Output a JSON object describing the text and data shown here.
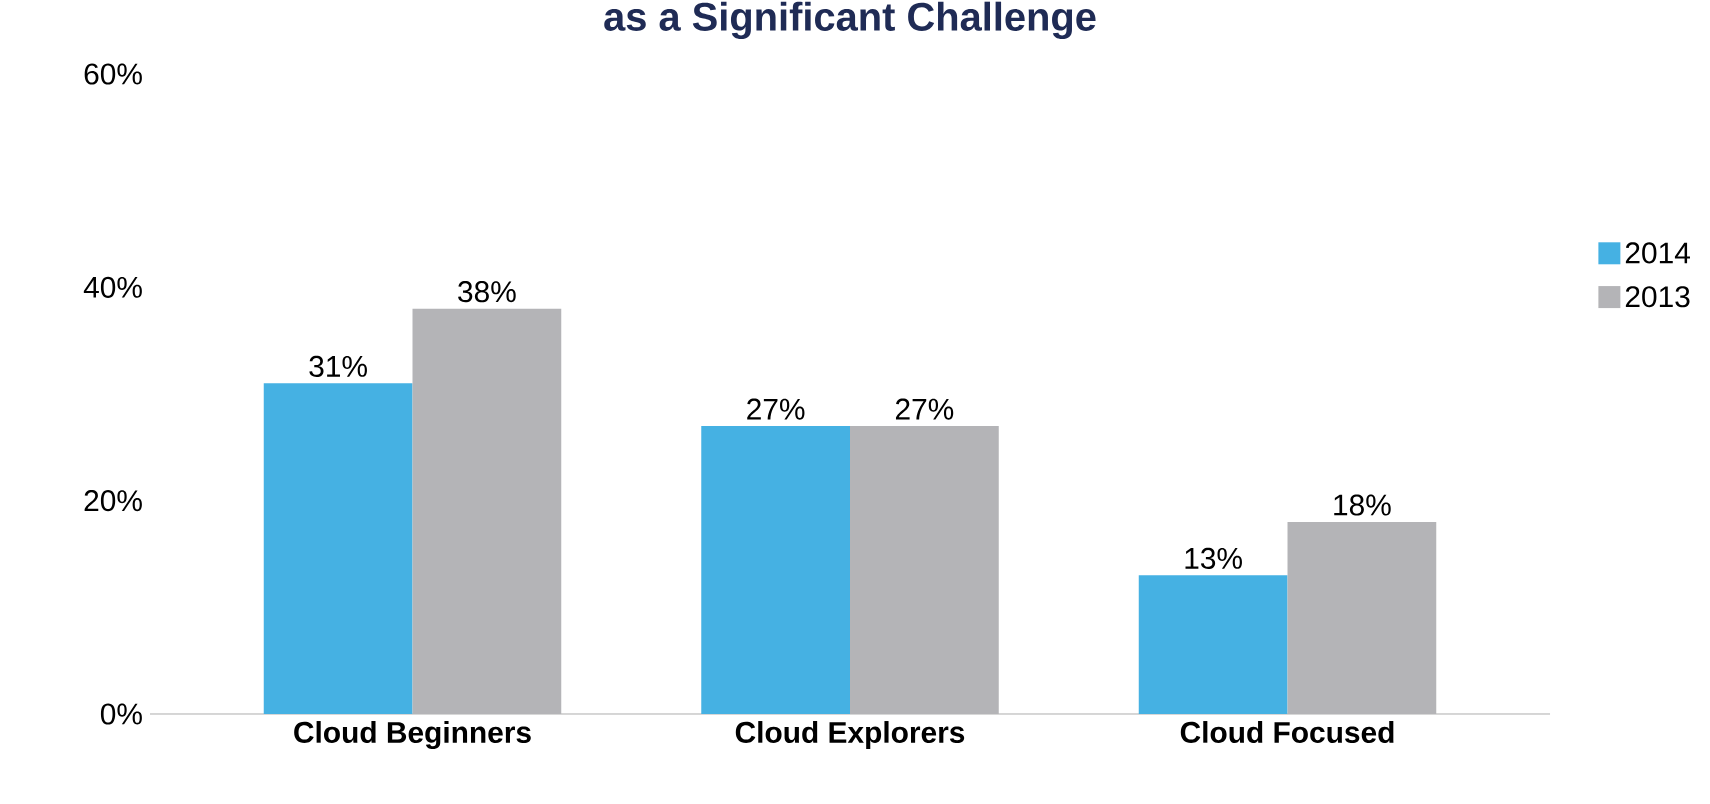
{
  "chart_data": {
    "type": "bar",
    "title": "as a Significant Challenge",
    "categories": [
      "Cloud Beginners",
      "Cloud Explorers",
      "Cloud Focused"
    ],
    "series": [
      {
        "name": "2014",
        "color": "#45b1e3",
        "values": [
          31,
          27,
          13
        ],
        "value_labels": [
          "31%",
          "27%",
          "13%"
        ]
      },
      {
        "name": "2013",
        "color": "#b4b4b7",
        "values": [
          38,
          27,
          18
        ],
        "value_labels": [
          "38%",
          "27%",
          "18%"
        ]
      }
    ],
    "ylim": [
      0,
      60
    ],
    "yticks": [
      {
        "value": 0,
        "label": "0%"
      },
      {
        "value": 20,
        "label": "20%"
      },
      {
        "value": 40,
        "label": "40%"
      },
      {
        "value": 60,
        "label": "60%"
      }
    ],
    "grid": false,
    "legend": "right"
  }
}
